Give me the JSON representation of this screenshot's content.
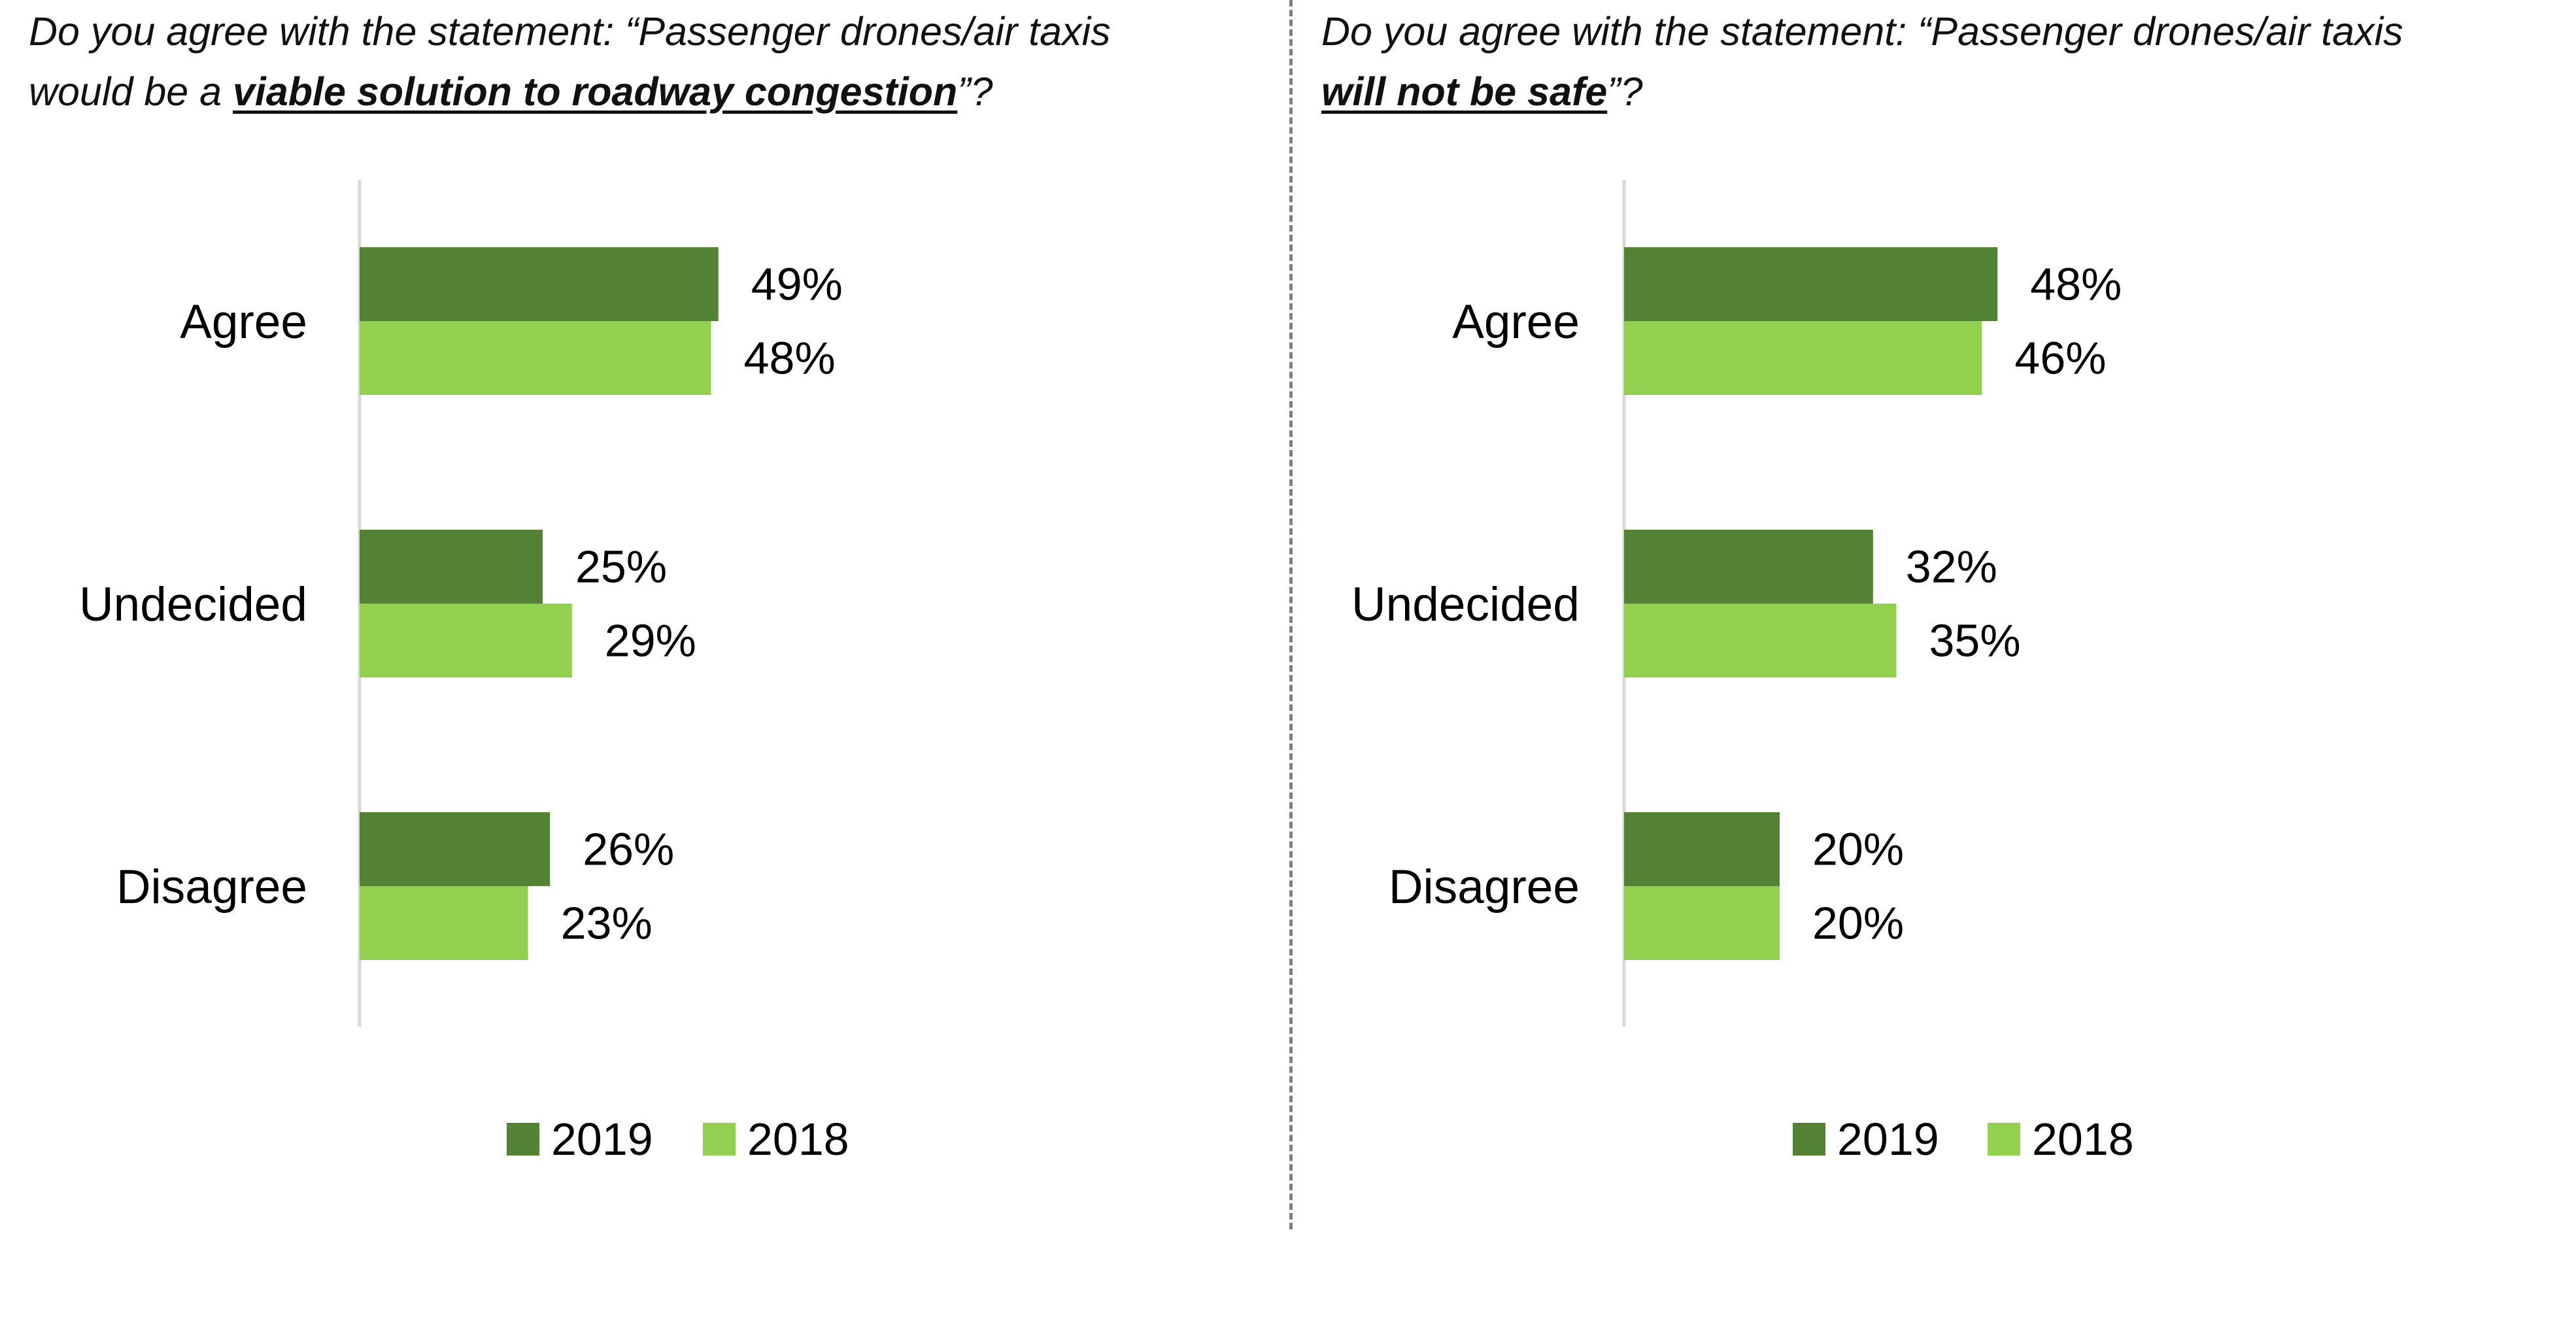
{
  "colors": {
    "series_2019": "#548235",
    "series_2018": "#92D050",
    "axis": "#d9d9d9",
    "divider": "#7f7f7f"
  },
  "chart_data": [
    {
      "type": "bar",
      "orientation": "horizontal",
      "title_parts": [
        "Do you agree with the statement: “Passenger drones/air taxis",
        "would be a ",
        "viable solution to roadway congestion",
        "”?"
      ],
      "categories": [
        "Agree",
        "Undecided",
        "Disagree"
      ],
      "series": [
        {
          "name": "2019",
          "values": [
            49,
            25,
            26
          ],
          "labels": [
            "49%",
            "25%",
            "26%"
          ]
        },
        {
          "name": "2018",
          "values": [
            48,
            29,
            23
          ],
          "labels": [
            "48%",
            "29%",
            "23%"
          ]
        }
      ],
      "xlim": [
        0,
        100
      ],
      "legend": "bottom-center",
      "grid": false
    },
    {
      "type": "bar",
      "orientation": "horizontal",
      "title_parts": [
        "Do you agree with the statement: “Passenger drones/air taxis",
        "",
        "will not be safe",
        "”?"
      ],
      "categories": [
        "Agree",
        "Undecided",
        "Disagree"
      ],
      "series": [
        {
          "name": "2019",
          "values": [
            48,
            32,
            20
          ],
          "labels": [
            "48%",
            "32%",
            "20%"
          ]
        },
        {
          "name": "2018",
          "values": [
            46,
            35,
            20
          ],
          "labels": [
            "46%",
            "35%",
            "20%"
          ]
        }
      ],
      "xlim": [
        0,
        100
      ],
      "legend": "bottom-center",
      "grid": false
    }
  ]
}
